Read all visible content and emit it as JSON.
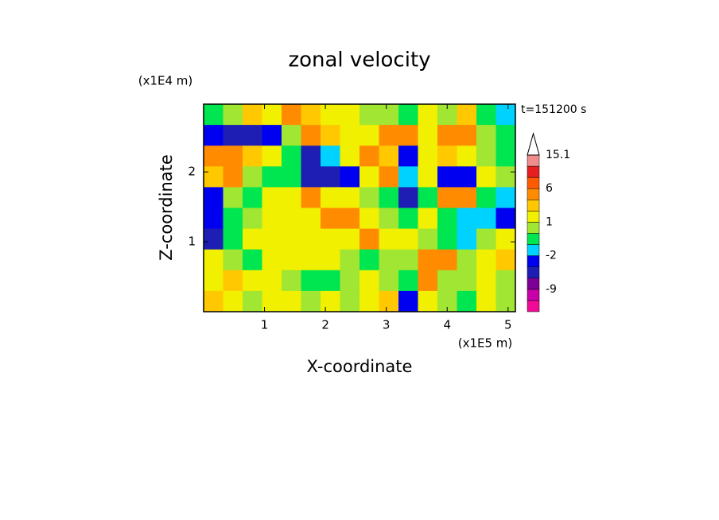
{
  "chart_data": {
    "type": "contour",
    "title": "zonal velocity",
    "x_label": "X-coordinate",
    "y_label": "Z-coordinate",
    "x_unit": "(x1E5 m)",
    "y_unit": "(x1E4 m)",
    "annotation": "t=151200 s",
    "xlim": [
      0,
      5.12
    ],
    "ylim": [
      0,
      2.97
    ],
    "xticks": [
      1,
      2,
      3,
      4,
      5
    ],
    "yticks": [
      1,
      2
    ],
    "values": [
      [
        -1,
        0,
        2,
        1,
        3,
        2,
        1,
        1,
        0,
        0.5,
        -1,
        1,
        0,
        2,
        -1,
        -2
      ],
      [
        -3,
        -6,
        -6,
        -3,
        0.5,
        4,
        2,
        1,
        1,
        4,
        3,
        1,
        4,
        3,
        0.5,
        -1
      ],
      [
        3,
        4,
        2,
        1,
        -1,
        -6,
        -2,
        1,
        3,
        2,
        -3,
        1,
        2,
        1,
        0.5,
        -1
      ],
      [
        2,
        3,
        0.5,
        -1,
        -1,
        -6,
        -6,
        -3,
        1,
        4,
        -2,
        1,
        -3,
        -3,
        1,
        0.5
      ],
      [
        -3,
        0.5,
        -1,
        1,
        1,
        3,
        1,
        1,
        0.5,
        -1,
        -6,
        -1,
        4,
        3,
        -1,
        -2
      ],
      [
        -3,
        -1,
        0,
        1,
        1,
        1,
        3,
        3,
        1,
        0,
        -1,
        1,
        -1,
        -2,
        -2,
        -3
      ],
      [
        -6,
        -1,
        1,
        1,
        1,
        1,
        1,
        1,
        3,
        1,
        1,
        0,
        -1,
        -2,
        0,
        1
      ],
      [
        1,
        0,
        -1,
        1,
        1,
        1,
        1,
        0,
        -1,
        0,
        0.5,
        3,
        3,
        0,
        1,
        2
      ],
      [
        1,
        2,
        1,
        1,
        0,
        -1,
        -1,
        0,
        1,
        0,
        -1,
        3,
        0,
        0,
        1,
        0
      ],
      [
        2,
        1,
        0,
        1,
        1,
        0,
        1,
        0,
        1,
        2,
        -3,
        1,
        0,
        -1,
        1,
        0
      ]
    ],
    "levels": [
      -15,
      -12,
      -9,
      -6,
      -3,
      -2,
      -1,
      0,
      1,
      2,
      3,
      6,
      9,
      12,
      15.1
    ],
    "colors": [
      "#f00a96",
      "#c800aa",
      "#7d0096",
      "#1e1eb4",
      "#0000f0",
      "#00d2ff",
      "#00e650",
      "#a0e632",
      "#f0f000",
      "#ffc800",
      "#ff8c00",
      "#ff5a00",
      "#e61e1e",
      "#f08c8c"
    ],
    "colorbar_ticks": [
      -9,
      -2,
      1,
      6,
      15.1
    ]
  }
}
